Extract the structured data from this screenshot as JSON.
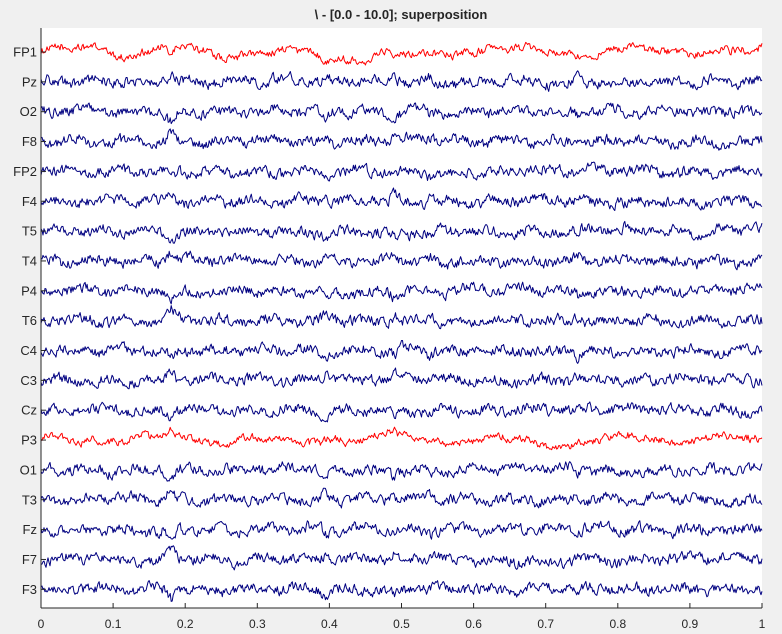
{
  "chart_data": {
    "type": "line",
    "title": "\\ - [0.0 - 10.0]; superposition",
    "xlabel": "",
    "ylabel": "",
    "xlim": [
      0,
      1
    ],
    "xticks": [
      "0",
      "0.1",
      "0.2",
      "0.3",
      "0.4",
      "0.5",
      "0.6",
      "0.7",
      "0.8",
      "0.9",
      "1"
    ],
    "grid": false,
    "legend": "none",
    "colors": {
      "default": "#000080",
      "highlight": "#ff0000",
      "axes_bg": "#ffffff",
      "figure_bg": "#f0f0f0",
      "axis": "#262626"
    },
    "series": [
      {
        "name": "FP1",
        "highlight": true
      },
      {
        "name": "Pz",
        "highlight": false
      },
      {
        "name": "O2",
        "highlight": false
      },
      {
        "name": "F8",
        "highlight": false
      },
      {
        "name": "FP2",
        "highlight": false
      },
      {
        "name": "F4",
        "highlight": false
      },
      {
        "name": "T5",
        "highlight": false
      },
      {
        "name": "T4",
        "highlight": false
      },
      {
        "name": "P4",
        "highlight": false
      },
      {
        "name": "T6",
        "highlight": false
      },
      {
        "name": "C4",
        "highlight": false
      },
      {
        "name": "C3",
        "highlight": false
      },
      {
        "name": "Cz",
        "highlight": false
      },
      {
        "name": "P3",
        "highlight": true
      },
      {
        "name": "O1",
        "highlight": false
      },
      {
        "name": "T3",
        "highlight": false
      },
      {
        "name": "Fz",
        "highlight": false
      },
      {
        "name": "F7",
        "highlight": false
      },
      {
        "name": "F3",
        "highlight": false
      }
    ]
  }
}
